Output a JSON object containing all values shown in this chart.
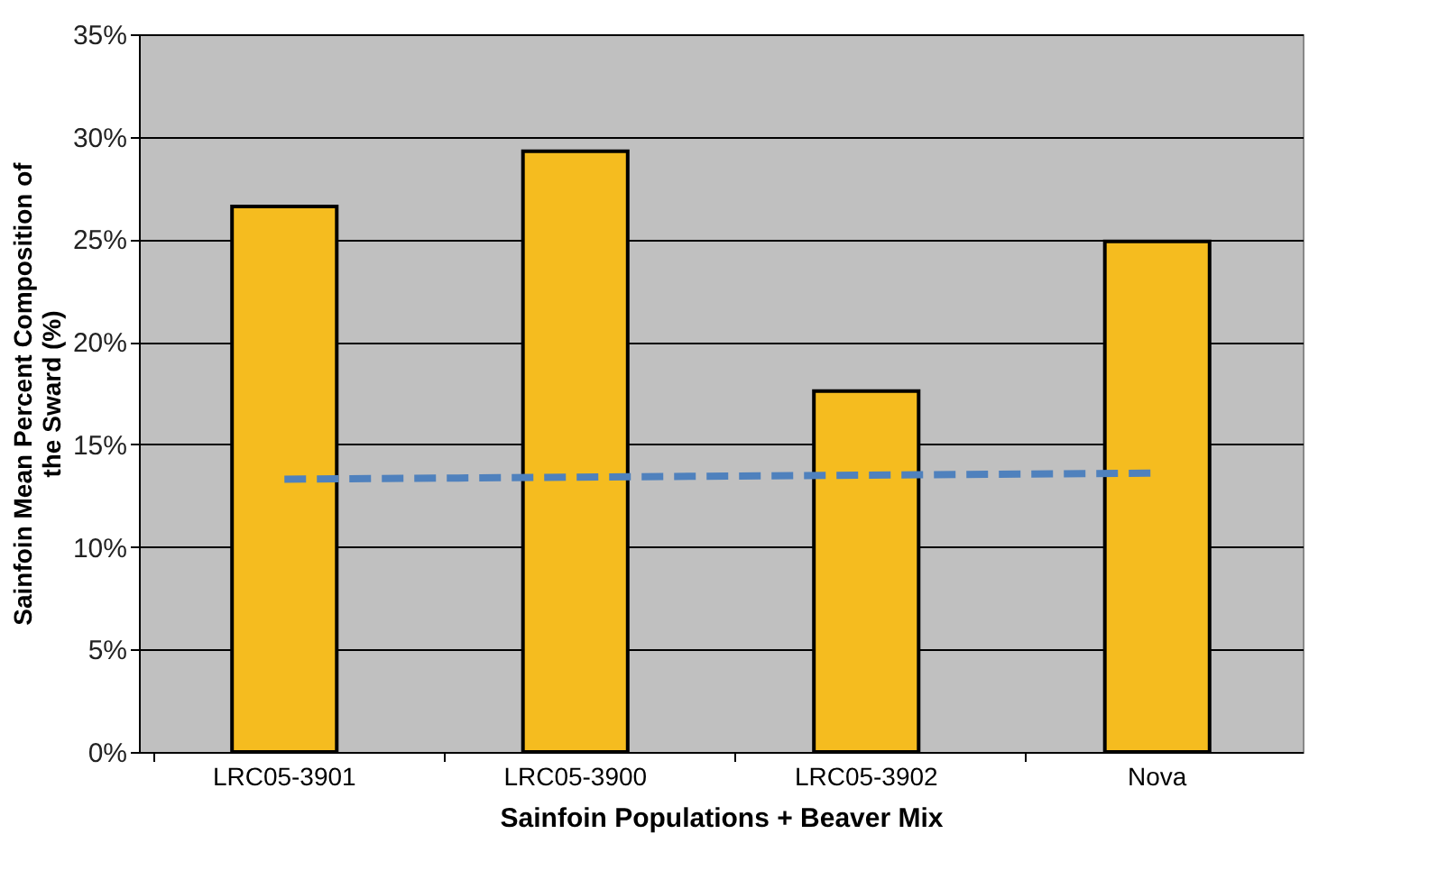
{
  "chart_data": {
    "type": "bar",
    "xlabel": "Sainfoin Populations + Beaver Mix",
    "ylabel": "Sainfoin Mean Percent Composition of the Sward (%)",
    "categories": [
      "LRC05-3901",
      "LRC05-3900",
      "LRC05-3902",
      "Nova"
    ],
    "series": [
      {
        "color": "#f5bc1f",
        "values": [
          26.6,
          29.3,
          17.6,
          24.9
        ]
      },
      {
        "type": "line",
        "color": "#4f81bd",
        "line_style": "dashed",
        "values": [
          13.3,
          13.4,
          13.5,
          13.6
        ]
      }
    ],
    "ylim": [
      0,
      35
    ],
    "yticks": [
      {
        "value": 0,
        "label": "0%"
      },
      {
        "value": 5,
        "label": "5%"
      },
      {
        "value": 10,
        "label": "10%"
      },
      {
        "value": 15,
        "label": "15%"
      },
      {
        "value": 20,
        "label": "20%"
      },
      {
        "value": 25,
        "label": "25%"
      },
      {
        "value": 30,
        "label": "30%"
      },
      {
        "value": 35,
        "label": "35%"
      }
    ],
    "grid": "y"
  }
}
